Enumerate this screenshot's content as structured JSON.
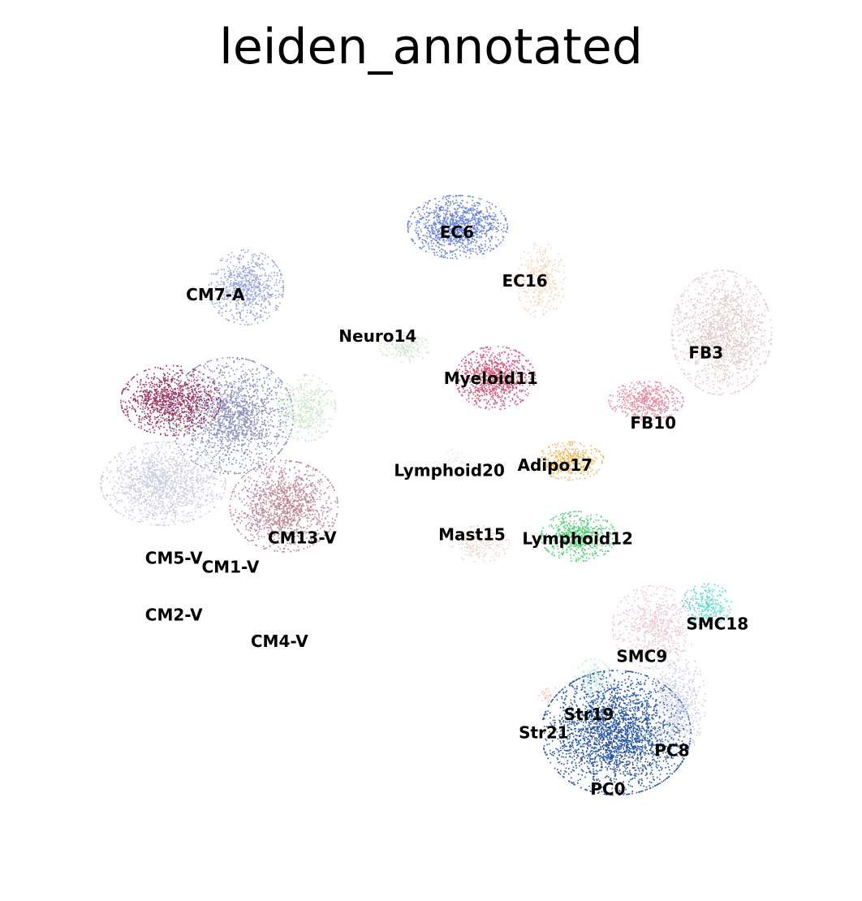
{
  "chart_data": {
    "type": "scatter",
    "title": "leiden_annotated",
    "xlabel": "",
    "ylabel": "",
    "axes_visible": false,
    "legend": "on data",
    "xlim": [
      0,
      100
    ],
    "ylim": [
      0,
      100
    ],
    "clusters": [
      {
        "label": "PC0",
        "color": "#0b3f9a",
        "x": 74,
        "y": 17,
        "rx": 9.0,
        "ry": 7.5,
        "density": 1.0,
        "count": 2600
      },
      {
        "label": "CM1-V",
        "color": "#7b84b8",
        "x": 23,
        "y": 59,
        "rx": 7.5,
        "ry": 7.0,
        "density": 1.0,
        "count": 1700
      },
      {
        "label": "CM2-V",
        "color": "#bdbfd6",
        "x": 14,
        "y": 50,
        "rx": 7.5,
        "ry": 5.0,
        "density": 0.8,
        "count": 1400
      },
      {
        "label": "FB3",
        "color": "#d8bcbc",
        "x": 88,
        "y": 70,
        "rx": 6.0,
        "ry": 7.5,
        "density": 0.8,
        "count": 1500
      },
      {
        "label": "CM4-V",
        "color": "#b2707f",
        "x": 30,
        "y": 47,
        "rx": 6.5,
        "ry": 5.5,
        "density": 0.9,
        "count": 1300
      },
      {
        "label": "CM5-V",
        "color": "#8c0b3c",
        "x": 15,
        "y": 61,
        "rx": 6.0,
        "ry": 4.2,
        "density": 0.9,
        "count": 1000
      },
      {
        "label": "EC6",
        "color": "#5574dc",
        "x": 53,
        "y": 84,
        "rx": 6.0,
        "ry": 3.8,
        "density": 1.0,
        "count": 1100
      },
      {
        "label": "CM7-A",
        "color": "#7b8ad8",
        "x": 25,
        "y": 76,
        "rx": 4.5,
        "ry": 4.5,
        "density": 0.8,
        "count": 700
      },
      {
        "label": "PC8",
        "color": "#b9bde0",
        "x": 82,
        "y": 21,
        "rx": 3.5,
        "ry": 6.5,
        "density": 0.7,
        "count": 600
      },
      {
        "label": "SMC9",
        "color": "#e4b3bd",
        "x": 79,
        "y": 31,
        "rx": 5.0,
        "ry": 5.0,
        "density": 0.6,
        "count": 700
      },
      {
        "label": "FB10",
        "color": "#e06b88",
        "x": 78,
        "y": 61,
        "rx": 4.5,
        "ry": 2.3,
        "density": 0.8,
        "count": 500
      },
      {
        "label": "Myeloid11",
        "color": "#d0436b",
        "x": 58,
        "y": 64,
        "rx": 4.8,
        "ry": 3.8,
        "density": 1.0,
        "count": 900
      },
      {
        "label": "Lymphoid12",
        "color": "#1ec44c",
        "x": 69,
        "y": 43,
        "rx": 4.5,
        "ry": 3.0,
        "density": 0.8,
        "count": 600
      },
      {
        "label": "CM13-V",
        "color": "#a3d9a0",
        "x": 33,
        "y": 60,
        "rx": 3.5,
        "ry": 4.0,
        "density": 0.5,
        "count": 400
      },
      {
        "label": "Neuro14",
        "color": "#b6d7b0",
        "x": 46,
        "y": 68,
        "rx": 3.0,
        "ry": 1.8,
        "density": 0.5,
        "count": 180
      },
      {
        "label": "Mast15",
        "color": "#e0c2b0",
        "x": 56,
        "y": 42,
        "rx": 3.5,
        "ry": 2.2,
        "density": 0.5,
        "count": 220
      },
      {
        "label": "EC16",
        "color": "#efb283",
        "x": 64,
        "y": 77,
        "rx": 3.0,
        "ry": 4.5,
        "density": 0.4,
        "count": 300
      },
      {
        "label": "Adipo17",
        "color": "#ea9a15",
        "x": 68,
        "y": 53,
        "rx": 4.0,
        "ry": 2.3,
        "density": 0.7,
        "count": 350
      },
      {
        "label": "SMC18",
        "color": "#19cfc1",
        "x": 86,
        "y": 34,
        "rx": 3.0,
        "ry": 2.5,
        "density": 0.7,
        "count": 250
      },
      {
        "label": "Str19",
        "color": "#a9e0d8",
        "x": 71,
        "y": 24,
        "rx": 2.2,
        "ry": 2.5,
        "density": 0.6,
        "count": 160
      },
      {
        "label": "Lymphoid20",
        "color": "#cfcfcf",
        "x": 53,
        "y": 53,
        "rx": 1.5,
        "ry": 1.5,
        "density": 0.2,
        "count": 40
      },
      {
        "label": "Str21",
        "color": "#e07a5f",
        "x": 65,
        "y": 22,
        "rx": 1.2,
        "ry": 1.2,
        "density": 0.2,
        "count": 30
      }
    ],
    "label_positions": [
      {
        "label": "EC6",
        "x": 53.0,
        "y": 82.5
      },
      {
        "label": "EC16",
        "x": 62.0,
        "y": 76.0
      },
      {
        "label": "CM7-A",
        "x": 21.0,
        "y": 74.2
      },
      {
        "label": "Neuro14",
        "x": 42.5,
        "y": 68.7
      },
      {
        "label": "Myeloid11",
        "x": 57.5,
        "y": 63.1
      },
      {
        "label": "FB3",
        "x": 86.0,
        "y": 66.5
      },
      {
        "label": "FB10",
        "x": 79.0,
        "y": 57.2
      },
      {
        "label": "Lymphoid20",
        "x": 52.0,
        "y": 50.9
      },
      {
        "label": "Adipo17",
        "x": 66.0,
        "y": 51.6
      },
      {
        "label": "CM13-V",
        "x": 32.5,
        "y": 42.0
      },
      {
        "label": "CM5-V",
        "x": 15.5,
        "y": 39.3
      },
      {
        "label": "CM1-V",
        "x": 23.0,
        "y": 38.1
      },
      {
        "label": "Mast15",
        "x": 55.0,
        "y": 42.4
      },
      {
        "label": "Lymphoid12",
        "x": 69.0,
        "y": 41.9
      },
      {
        "label": "CM2-V",
        "x": 15.5,
        "y": 31.8
      },
      {
        "label": "CM4-V",
        "x": 29.5,
        "y": 28.3
      },
      {
        "label": "SMC18",
        "x": 87.5,
        "y": 30.6
      },
      {
        "label": "SMC9",
        "x": 77.5,
        "y": 26.3
      },
      {
        "label": "Str19",
        "x": 70.5,
        "y": 18.6
      },
      {
        "label": "Str21",
        "x": 64.5,
        "y": 16.2
      },
      {
        "label": "PC8",
        "x": 81.5,
        "y": 13.8
      },
      {
        "label": "PC0",
        "x": 73.0,
        "y": 8.7
      }
    ]
  }
}
